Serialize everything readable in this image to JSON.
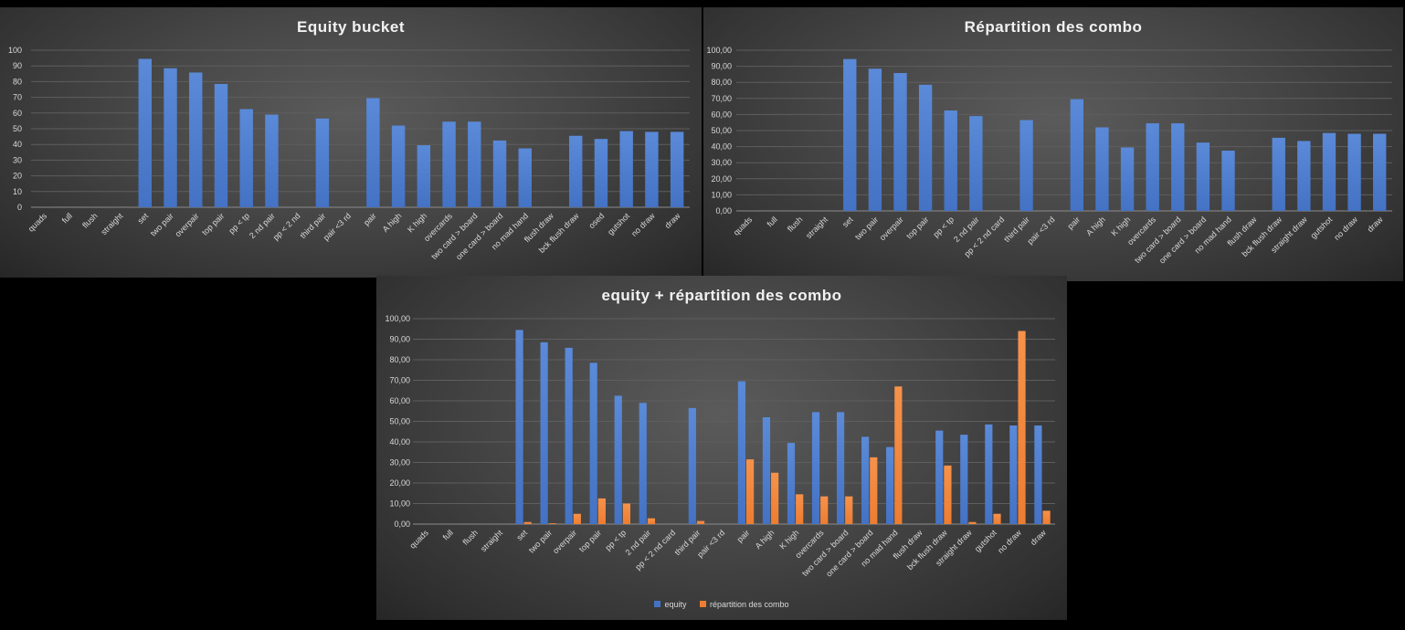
{
  "chart_data": [
    {
      "type": "bar",
      "title": "Equity bucket",
      "categories": [
        "quads",
        "full",
        "flush",
        "straight",
        "set",
        "two pair",
        "overpair",
        "top pair",
        "pp < tp",
        "2 nd pair",
        "pp < 2 nd",
        "third pair",
        "pair <3 rd",
        "pair",
        "A high",
        "K high",
        "overcards",
        "two card > board",
        "one card > board",
        "no mad hand",
        "flush draw",
        "bck flush draw",
        "osed",
        "gutshot",
        "no draw",
        "draw"
      ],
      "series": [
        {
          "values": [
            0,
            0,
            0,
            0,
            94.5,
            88.5,
            85.8,
            78.5,
            62.5,
            59,
            0,
            56.5,
            0,
            69.5,
            52,
            39.5,
            54.5,
            54.5,
            42.5,
            37.5,
            0,
            45.5,
            43.5,
            48.5,
            48,
            48
          ]
        }
      ],
      "ylim": [
        0,
        100
      ],
      "yticks": [
        "0",
        "10",
        "20",
        "30",
        "40",
        "50",
        "60",
        "70",
        "80",
        "90",
        "100"
      ],
      "grid": true,
      "colors": {
        "bar": "#4472c4"
      }
    },
    {
      "type": "bar",
      "title": "Répartition des combo",
      "categories": [
        "quads",
        "full",
        "flush",
        "straight",
        "set",
        "two pair",
        "overpair",
        "top pair",
        "pp < tp",
        "2 nd pair",
        "pp < 2 nd card",
        "third pair",
        "pair <3 rd",
        "pair",
        "A high",
        "K high",
        "overcards",
        "two card > board",
        "one card > board",
        "no mad hand",
        "flush draw",
        "bck flush draw",
        "straight draw",
        "gutshot",
        "no draw",
        "draw"
      ],
      "series": [
        {
          "values": [
            0,
            0,
            0,
            0,
            94.5,
            88.5,
            85.8,
            78.5,
            62.5,
            59,
            0,
            56.5,
            0,
            69.5,
            52,
            39.5,
            54.5,
            54.5,
            42.5,
            37.5,
            0,
            45.5,
            43.5,
            48.5,
            48,
            48
          ]
        }
      ],
      "ylim": [
        0,
        100
      ],
      "yticks": [
        "0,00",
        "10,00",
        "20,00",
        "30,00",
        "40,00",
        "50,00",
        "60,00",
        "70,00",
        "80,00",
        "90,00",
        "100,00"
      ],
      "grid": true,
      "colors": {
        "bar": "#4472c4"
      }
    },
    {
      "type": "bar",
      "title": "equity + répartition des combo",
      "categories": [
        "quads",
        "full",
        "flush",
        "straight",
        "set",
        "two pair",
        "overpair",
        "top pair",
        "pp < tp",
        "2 nd pair",
        "pp < 2 nd card",
        "third pair",
        "pair <3 rd",
        "pair",
        "A high",
        "K high",
        "overcards",
        "two card > board",
        "one card > board",
        "no mad hand",
        "flush draw",
        "bck flush draw",
        "straight draw",
        "gutshot",
        "no draw",
        "draw"
      ],
      "series": [
        {
          "name": "equity",
          "values": [
            0,
            0,
            0,
            0,
            94.5,
            88.5,
            85.8,
            78.5,
            62.5,
            59,
            0,
            56.5,
            0,
            69.5,
            52,
            39.5,
            54.5,
            54.5,
            42.5,
            37.5,
            0,
            45.5,
            43.5,
            48.5,
            48,
            48
          ]
        },
        {
          "name": "répartition des combo",
          "values": [
            0,
            0,
            0,
            0,
            1,
            0.4,
            5,
            12.5,
            10,
            2.8,
            0,
            1.5,
            0,
            31.5,
            25,
            14.5,
            13.5,
            13.5,
            32.5,
            67,
            0,
            28.5,
            1,
            5,
            94,
            6.5
          ]
        }
      ],
      "ylim": [
        0,
        100
      ],
      "yticks": [
        "0,00",
        "10,00",
        "20,00",
        "30,00",
        "40,00",
        "50,00",
        "60,00",
        "70,00",
        "80,00",
        "90,00",
        "100,00"
      ],
      "grid": true,
      "legend_position": "bottom",
      "colors": {
        "equity": "#4472c4",
        "répartition des combo": "#ed7d31"
      }
    }
  ]
}
